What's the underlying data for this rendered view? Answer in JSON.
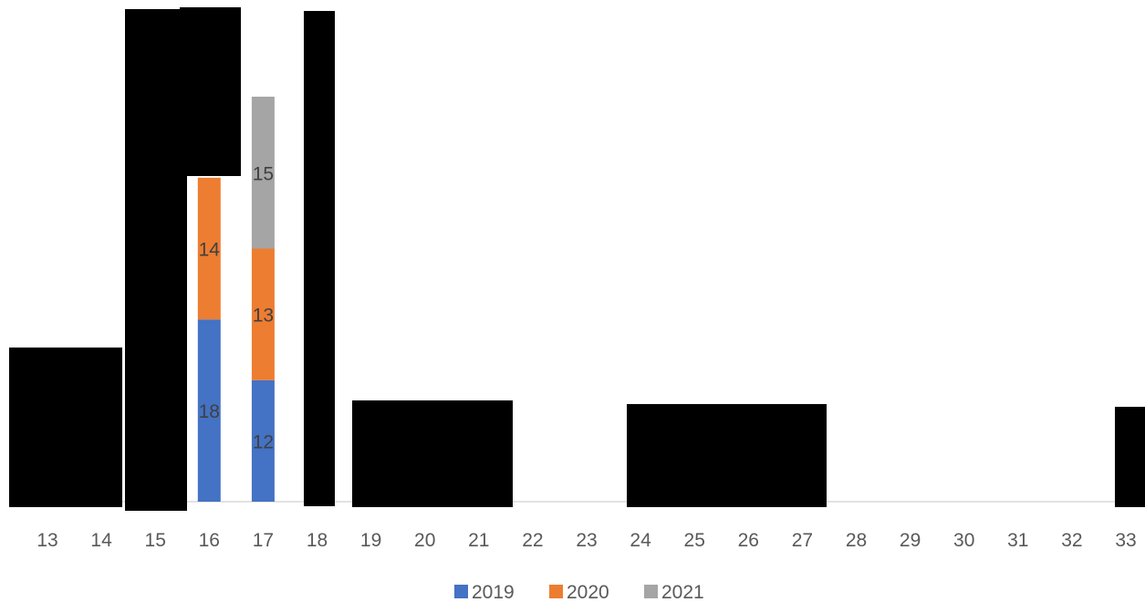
{
  "chart_data": {
    "type": "bar",
    "stacked": true,
    "categories": [
      "13",
      "14",
      "15",
      "16",
      "17",
      "18",
      "19",
      "20",
      "21",
      "22",
      "23",
      "24",
      "25",
      "26",
      "27",
      "28",
      "29",
      "30",
      "31",
      "32",
      "33"
    ],
    "series": [
      {
        "name": "2019",
        "color": "#4472C4",
        "values": [
          null,
          null,
          null,
          18,
          12,
          null,
          null,
          null,
          null,
          null,
          null,
          null,
          null,
          null,
          null,
          null,
          null,
          null,
          null,
          null,
          null
        ]
      },
      {
        "name": "2020",
        "color": "#ED7D31",
        "values": [
          null,
          null,
          null,
          14,
          13,
          null,
          null,
          null,
          null,
          null,
          null,
          null,
          null,
          null,
          null,
          null,
          null,
          null,
          null,
          null,
          null
        ]
      },
      {
        "name": "2021",
        "color": "#A5A5A5",
        "values": [
          null,
          null,
          null,
          null,
          15,
          null,
          null,
          null,
          null,
          null,
          null,
          null,
          null,
          null,
          null,
          null,
          null,
          null,
          null,
          null,
          null
        ]
      }
    ],
    "data_labels": true,
    "legend_position": "bottom",
    "grid": false,
    "redacted_regions": true
  }
}
